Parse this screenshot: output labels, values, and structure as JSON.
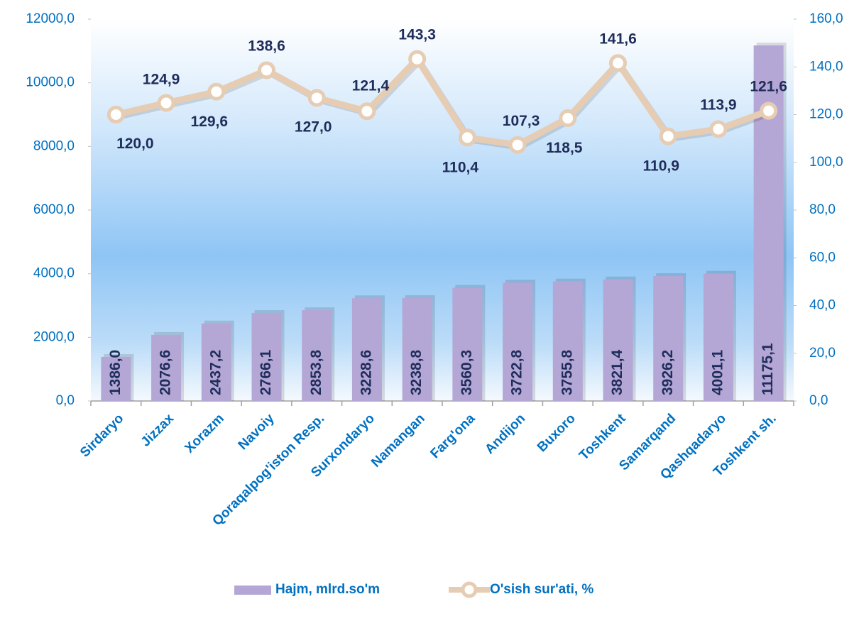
{
  "chart_data": {
    "type": "bar",
    "categories": [
      "Sirdaryo",
      "Jizzax",
      "Xorazm",
      "Navoiy",
      "Qoraqalpog'iston Resp.",
      "Surxondaryo",
      "Namangan",
      "Farg'ona",
      "Andijon",
      "Buxoro",
      "Toshkent",
      "Samarqand",
      "Qashqadaryo",
      "Toshkent sh."
    ],
    "series": [
      {
        "name": "Hajm, mlrd.so'm",
        "type": "bar",
        "color": "#b4a7d6",
        "values": [
          1386.0,
          2076.6,
          2437.2,
          2766.1,
          2853.8,
          3228.6,
          3238.8,
          3560.3,
          3722.8,
          3755.8,
          3821.4,
          3926.2,
          4001.1,
          11175.1
        ],
        "value_labels": [
          "1386,0",
          "2076,6",
          "2437,2",
          "2766,1",
          "2853,8",
          "3228,6",
          "3238,8",
          "3560,3",
          "3722,8",
          "3755,8",
          "3821,4",
          "3926,2",
          "4001,1",
          "11175,1"
        ]
      },
      {
        "name": "O'sish sur'ati, %",
        "type": "line",
        "axis": "y2",
        "color": "#e6ccb2",
        "values": [
          120.0,
          124.9,
          129.6,
          138.6,
          127.0,
          121.4,
          143.3,
          110.4,
          107.3,
          118.5,
          141.6,
          110.9,
          113.9,
          121.6
        ],
        "value_labels": [
          "120,0",
          "124,9",
          "129,6",
          "138,6",
          "127,0",
          "121,4",
          "143,3",
          "110,4",
          "107,3",
          "118,5",
          "141,6",
          "110,9",
          "113,9",
          "121,6"
        ]
      }
    ],
    "ylim": [
      0,
      12000
    ],
    "yticks": [
      {
        "value": 0,
        "label": "0,0"
      },
      {
        "value": 2000,
        "label": "2000,0"
      },
      {
        "value": 4000,
        "label": "4000,0"
      },
      {
        "value": 6000,
        "label": "6000,0"
      },
      {
        "value": 8000,
        "label": "8000,0"
      },
      {
        "value": 10000,
        "label": "10000,0"
      },
      {
        "value": 12000,
        "label": "12000,0"
      }
    ],
    "y2lim": [
      0,
      160
    ],
    "y2ticks": [
      {
        "value": 0,
        "label": "0,0"
      },
      {
        "value": 20,
        "label": "20,0"
      },
      {
        "value": 40,
        "label": "40,0"
      },
      {
        "value": 60,
        "label": "60,0"
      },
      {
        "value": 80,
        "label": "80,0"
      },
      {
        "value": 100,
        "label": "100,0"
      },
      {
        "value": 120,
        "label": "120,0"
      },
      {
        "value": 140,
        "label": "140,0"
      },
      {
        "value": 160,
        "label": "160,0"
      }
    ],
    "legend": "bottom"
  }
}
